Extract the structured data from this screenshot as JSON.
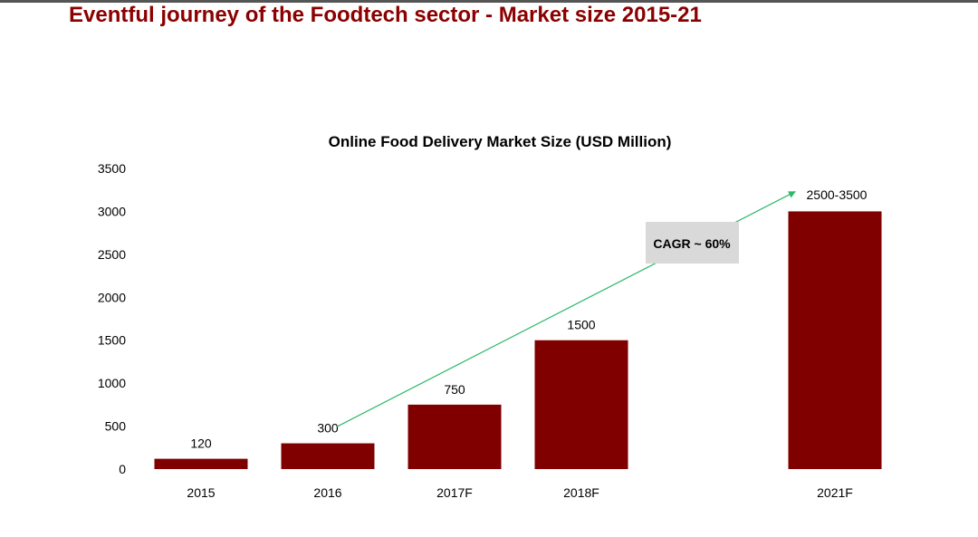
{
  "page": {
    "title": "Eventful journey of the Foodtech sector - Market size 2015-21",
    "title_color": "#8b0000"
  },
  "chart_data": {
    "type": "bar",
    "title": "Online Food Delivery Market Size (USD Million)",
    "xlabel": "",
    "ylabel": "",
    "categories": [
      "2015",
      "2016",
      "2017F",
      "2018F",
      "2021F"
    ],
    "values": [
      120,
      300,
      750,
      1500,
      3000
    ],
    "data_labels": [
      "120",
      "300",
      "750",
      "1500",
      "2500-3500"
    ],
    "ylim": [
      0,
      3500
    ],
    "yticks": [
      0,
      500,
      1000,
      1500,
      2000,
      2500,
      3000,
      3500
    ],
    "grid": false,
    "legend": "none",
    "bar_color": "#800000",
    "annotation": {
      "text": "CAGR ~ 60%",
      "from_category": "2016",
      "to_category": "2021F",
      "from_value": 620,
      "to_value": 3250,
      "arrow_color": "#2eb86b",
      "box_color": "#d9d9d9"
    }
  }
}
